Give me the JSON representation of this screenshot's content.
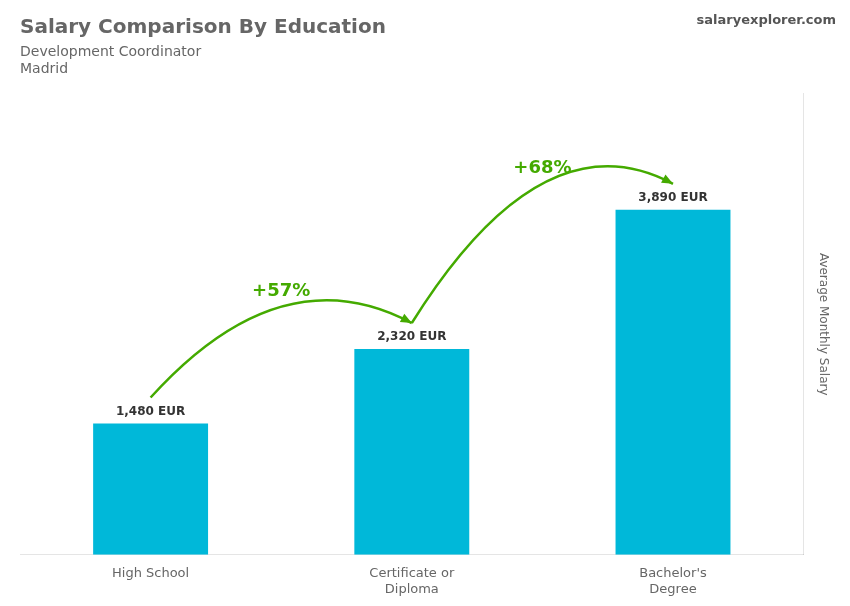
{
  "chart_data": {
    "type": "bar",
    "title": "Salary Comparison By Education",
    "subtitle": [
      "Development Coordinator",
      "Madrid"
    ],
    "categories": [
      "High School",
      "Certificate or\nDiploma",
      "Bachelor's\nDegree"
    ],
    "values": [
      1480,
      2320,
      3890
    ],
    "value_labels": [
      "1,480 EUR",
      "2,320 EUR",
      "3,890 EUR"
    ],
    "data_labels": true,
    "color": "#00b8d9",
    "ylabel": "Average Monthly Salary",
    "ylim": [
      0,
      5200
    ],
    "tick_labels": "x",
    "grid": false,
    "annotations": [
      {
        "text": "+57%",
        "from": "High School",
        "to": "Certificate or\nDiploma"
      },
      {
        "text": "+68%",
        "from": "Certificate or\nDiploma",
        "to": "Bachelor's\nDegree"
      },
      {
        "text": "salaryexplorer.com"
      }
    ]
  }
}
